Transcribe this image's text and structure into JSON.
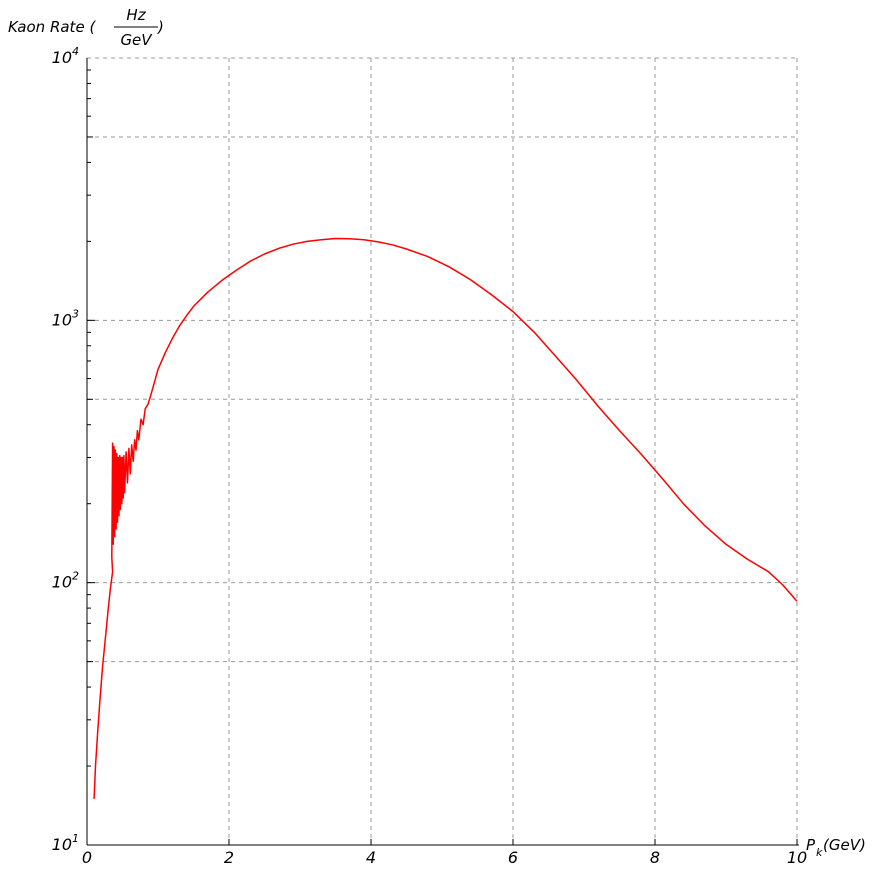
{
  "chart_data": {
    "type": "line",
    "title": "",
    "xlabel": "P_k(GeV)",
    "ylabel": "Kaon Rate (Hz/GeV)",
    "ylabel_prefix": "Kaon Rate (",
    "ylabel_numerator": "Hz",
    "ylabel_denominator": "GeV",
    "ylabel_suffix": ")",
    "xlabel_main": "P",
    "xlabel_sub": "k",
    "xlabel_unit": "(GeV)",
    "xlim": [
      0,
      10
    ],
    "ylim": [
      10,
      10000
    ],
    "yscale": "log",
    "grid": true,
    "x_ticks": [
      {
        "value": 0,
        "label": "0"
      },
      {
        "value": 2,
        "label": "2"
      },
      {
        "value": 4,
        "label": "4"
      },
      {
        "value": 6,
        "label": "6"
      },
      {
        "value": 8,
        "label": "8"
      },
      {
        "value": 10,
        "label": "10"
      }
    ],
    "y_ticks": [
      {
        "value": 10,
        "base": "10",
        "exp": "1"
      },
      {
        "value": 100,
        "base": "10",
        "exp": "2"
      },
      {
        "value": 1000,
        "base": "10",
        "exp": "3"
      },
      {
        "value": 10000,
        "base": "10",
        "exp": "4"
      }
    ],
    "y_gridlines": [
      50,
      100,
      500,
      1000,
      5000,
      10000
    ],
    "series": [
      {
        "color": "#ff0000",
        "points": [
          [
            0.1,
            15
          ],
          [
            0.12,
            20
          ],
          [
            0.15,
            27
          ],
          [
            0.18,
            35
          ],
          [
            0.22,
            48
          ],
          [
            0.26,
            62
          ],
          [
            0.3,
            80
          ],
          [
            0.33,
            95
          ],
          [
            0.36,
            110
          ],
          [
            0.35,
            125
          ],
          [
            0.36,
            340
          ],
          [
            0.37,
            140
          ],
          [
            0.38,
            330
          ],
          [
            0.39,
            150
          ],
          [
            0.4,
            320
          ],
          [
            0.41,
            160
          ],
          [
            0.42,
            310
          ],
          [
            0.43,
            170
          ],
          [
            0.44,
            300
          ],
          [
            0.45,
            180
          ],
          [
            0.46,
            305
          ],
          [
            0.47,
            190
          ],
          [
            0.48,
            300
          ],
          [
            0.49,
            200
          ],
          [
            0.5,
            300
          ],
          [
            0.51,
            210
          ],
          [
            0.52,
            305
          ],
          [
            0.53,
            220
          ],
          [
            0.55,
            315
          ],
          [
            0.57,
            240
          ],
          [
            0.59,
            325
          ],
          [
            0.61,
            260
          ],
          [
            0.63,
            335
          ],
          [
            0.65,
            290
          ],
          [
            0.67,
            350
          ],
          [
            0.69,
            320
          ],
          [
            0.71,
            380
          ],
          [
            0.73,
            350
          ],
          [
            0.76,
            420
          ],
          [
            0.79,
            400
          ],
          [
            0.82,
            460
          ],
          [
            0.86,
            480
          ],
          [
            0.9,
            520
          ],
          [
            0.95,
            580
          ],
          [
            1.0,
            650
          ],
          [
            1.1,
            750
          ],
          [
            1.2,
            850
          ],
          [
            1.3,
            950
          ],
          [
            1.4,
            1040
          ],
          [
            1.5,
            1130
          ],
          [
            1.7,
            1280
          ],
          [
            1.9,
            1420
          ],
          [
            2.1,
            1550
          ],
          [
            2.3,
            1680
          ],
          [
            2.5,
            1790
          ],
          [
            2.7,
            1880
          ],
          [
            2.9,
            1950
          ],
          [
            3.1,
            2000
          ],
          [
            3.3,
            2030
          ],
          [
            3.5,
            2050
          ],
          [
            3.7,
            2045
          ],
          [
            3.9,
            2030
          ],
          [
            4.1,
            1990
          ],
          [
            4.3,
            1940
          ],
          [
            4.5,
            1870
          ],
          [
            4.8,
            1750
          ],
          [
            5.1,
            1600
          ],
          [
            5.4,
            1430
          ],
          [
            5.7,
            1250
          ],
          [
            6.0,
            1080
          ],
          [
            6.3,
            900
          ],
          [
            6.6,
            730
          ],
          [
            6.9,
            590
          ],
          [
            7.2,
            470
          ],
          [
            7.5,
            380
          ],
          [
            7.8,
            310
          ],
          [
            8.1,
            250
          ],
          [
            8.4,
            200
          ],
          [
            8.7,
            165
          ],
          [
            9.0,
            140
          ],
          [
            9.3,
            123
          ],
          [
            9.6,
            110
          ],
          [
            9.8,
            98
          ],
          [
            10.0,
            85
          ]
        ]
      }
    ]
  }
}
